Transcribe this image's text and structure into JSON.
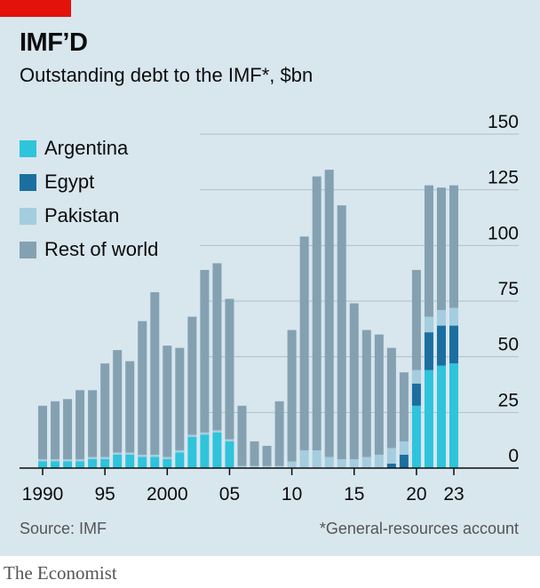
{
  "brand": "The Economist",
  "title": "IMF’D",
  "subtitle": "Outstanding debt to the IMF*, $bn",
  "source": "Source: IMF",
  "footnote": "*General-resources account",
  "colors": {
    "argentina": "#2ec4dc",
    "egypt": "#1b6fa0",
    "pakistan": "#a4cddf",
    "rest": "#84a1b2",
    "background": "#d8e6ee",
    "red_tag": "#e3120b"
  },
  "chart_data": {
    "type": "bar",
    "stacked": true,
    "title": "Outstanding debt to the IMF*, $bn",
    "x": [
      1990,
      1991,
      1992,
      1993,
      1994,
      1995,
      1996,
      1997,
      1998,
      1999,
      2000,
      2001,
      2002,
      2003,
      2004,
      2005,
      2006,
      2007,
      2008,
      2009,
      2010,
      2011,
      2012,
      2013,
      2014,
      2015,
      2016,
      2017,
      2018,
      2019,
      2020,
      2021,
      2022,
      2023
    ],
    "x_tick_labels": [
      {
        "x": 1990,
        "label": "1990"
      },
      {
        "x": 1995,
        "label": "95"
      },
      {
        "x": 2000,
        "label": "2000"
      },
      {
        "x": 2005,
        "label": "05"
      },
      {
        "x": 2010,
        "label": "10"
      },
      {
        "x": 2015,
        "label": "15"
      },
      {
        "x": 2020,
        "label": "20"
      },
      {
        "x": 2023,
        "label": "23"
      }
    ],
    "y_ticks": [
      0,
      25,
      50,
      75,
      100,
      125,
      150
    ],
    "ylim": [
      0,
      150
    ],
    "series": [
      {
        "name": "Argentina",
        "color_key": "argentina",
        "values": [
          3,
          3,
          3,
          3,
          4,
          4,
          6,
          6,
          5,
          5,
          4,
          7,
          14,
          15,
          16,
          12,
          0,
          0,
          0,
          0,
          0,
          0,
          0,
          0,
          0,
          0,
          0,
          0,
          0,
          0,
          28,
          44,
          46,
          47
        ]
      },
      {
        "name": "Egypt",
        "color_key": "egypt",
        "values": [
          0,
          0,
          0,
          0,
          0,
          0,
          0,
          0,
          0,
          0,
          0,
          0,
          0,
          0,
          0,
          0,
          0,
          0,
          0,
          0,
          0,
          0,
          0,
          0,
          0,
          0,
          0,
          0,
          2,
          6,
          10,
          17,
          18,
          17
        ]
      },
      {
        "name": "Pakistan",
        "color_key": "pakistan",
        "values": [
          1,
          1,
          1,
          1,
          1,
          1,
          1,
          1,
          1,
          1,
          1,
          1,
          1,
          1,
          1,
          1,
          1,
          1,
          1,
          1,
          3,
          8,
          8,
          5,
          4,
          4,
          5,
          6,
          7,
          6,
          6,
          7,
          7,
          8
        ]
      },
      {
        "name": "Rest of world",
        "color_key": "rest",
        "values": [
          24,
          26,
          27,
          31,
          30,
          42,
          46,
          41,
          60,
          73,
          50,
          46,
          53,
          73,
          75,
          63,
          27,
          11,
          9,
          29,
          59,
          96,
          123,
          129,
          114,
          70,
          57,
          54,
          45,
          31,
          45,
          59,
          55,
          55
        ]
      }
    ],
    "grid": true,
    "legend": "top-left"
  }
}
